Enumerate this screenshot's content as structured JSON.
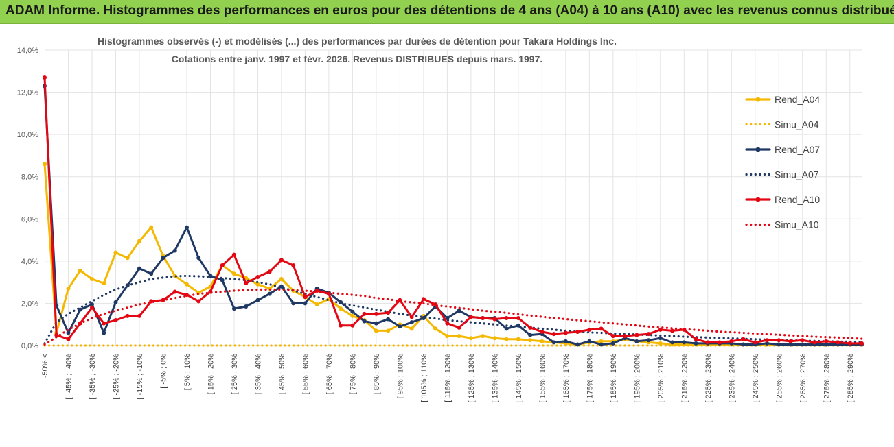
{
  "banner": {
    "title": "ADAM Informe. Histogrammes des performances en euros pour des détentions de 4 ans (A04) à 10 ans (A10) avec les revenus connus distribués",
    "color": "#92d050"
  },
  "chart_data": {
    "type": "line",
    "title_line1": "Histogrammes observés (-) et modélisés (...) des performances par durées de détention pour Takara Holdings Inc.",
    "title_line2": "Cotations entre janv. 1997 et févr. 2026. Revenus DISTRIBUES depuis mars. 1997.",
    "xlabel": "",
    "ylabel": "",
    "ylim": [
      0,
      14
    ],
    "grid": true,
    "legend_position": "right",
    "y_ticks": [
      "0,0%",
      "2,0%",
      "4,0%",
      "6,0%",
      "8,0%",
      "10,0%",
      "12,0%",
      "14,0%"
    ],
    "category_labels": [
      "-50% <",
      "[ -45% ; -40%",
      "[ -35% ; -30%",
      "[ -25% ; -20%",
      "[ -15% ; -10%",
      "[ -5% ; 0%",
      "[ 5% ; 10%",
      "[ 15% ; 20%",
      "[ 25% ; 30%",
      "[ 35% ; 40%",
      "[ 45% ; 50%",
      "[ 55% ; 60%",
      "[ 65% ; 70%",
      "[ 75% ; 80%",
      "[ 85% ; 90%",
      "[ 95% ; 100%",
      "[ 105% ; 110%",
      "[ 115% ; 120%",
      "[ 125% ; 130%",
      "[ 135% ; 140%",
      "[ 145% ; 150%",
      "[ 155% ; 160%",
      "[ 165% ; 170%",
      "[ 175% ; 180%",
      "[ 185% ; 190%",
      "[ 195% ; 200%",
      "[ 205% ; 210%",
      "[ 215% ; 220%",
      "[ 225% ; 230%",
      "[ 235% ; 240%",
      "[ 245% ; 250%",
      "[ 255% ; 260%",
      "[ 265% ; 270%",
      "[ 275% ; 280%",
      "[ 285% ; 290%"
    ],
    "n_categories": 70,
    "series": [
      {
        "name": "Rend_A04",
        "style": "solid",
        "color": "#f5b800",
        "values": [
          8.6,
          0.6,
          2.7,
          3.55,
          3.15,
          2.95,
          4.4,
          4.15,
          4.95,
          5.6,
          4.25,
          3.3,
          2.9,
          2.5,
          2.8,
          3.8,
          3.4,
          3.2,
          2.9,
          2.7,
          3.15,
          2.6,
          2.3,
          1.95,
          2.2,
          1.75,
          1.4,
          1.2,
          0.7,
          0.7,
          1.0,
          0.8,
          1.4,
          0.8,
          0.45,
          0.45,
          0.35,
          0.45,
          0.35,
          0.3,
          0.3,
          0.25,
          0.2,
          0.15,
          0.1,
          0.05,
          0.15,
          0.2,
          0.2,
          0.3,
          0.2,
          0.15,
          0.1,
          0.05,
          0.05,
          0.05,
          0.05,
          0.05,
          0.05,
          0.05,
          0.05,
          0.05,
          0.05,
          0.05,
          0.05,
          0.05,
          0.05,
          0.05,
          0.05,
          0.05
        ]
      },
      {
        "name": "Simu_A04",
        "style": "dotted",
        "color": "#f5b800",
        "values": [
          0,
          0,
          0,
          0,
          0,
          0,
          0,
          0,
          0,
          0,
          0,
          0,
          0,
          0,
          0,
          0,
          0,
          0,
          0,
          0,
          0,
          0,
          0,
          0,
          0,
          0,
          0,
          0,
          0,
          0,
          0,
          0,
          0,
          0,
          0,
          0,
          0,
          0,
          0,
          0,
          0,
          0,
          0,
          0,
          0,
          0,
          0,
          0,
          0,
          0,
          0,
          0,
          0,
          0,
          0,
          0,
          0,
          0,
          0,
          0,
          0,
          0,
          0,
          0,
          0,
          0,
          0,
          0,
          0,
          0
        ]
      },
      {
        "name": "Rend_A07",
        "style": "solid",
        "color": "#1f3864",
        "values": [
          12.3,
          1.9,
          0.6,
          1.7,
          1.95,
          0.6,
          2.05,
          2.85,
          3.65,
          3.4,
          4.15,
          4.5,
          5.6,
          4.15,
          3.3,
          3.1,
          1.75,
          1.85,
          2.15,
          2.45,
          2.8,
          2.0,
          2.0,
          2.7,
          2.5,
          2.05,
          1.6,
          1.15,
          1.05,
          1.25,
          0.9,
          1.1,
          1.3,
          1.85,
          1.3,
          1.65,
          1.35,
          1.3,
          1.3,
          0.8,
          0.95,
          0.5,
          0.55,
          0.15,
          0.2,
          0.05,
          0.2,
          0.05,
          0.1,
          0.35,
          0.2,
          0.25,
          0.35,
          0.15,
          0.15,
          0.1,
          0.1,
          0.1,
          0.1,
          0.05,
          0.05,
          0.1,
          0.05,
          0.05,
          0.05,
          0.05,
          0.05,
          0.05,
          0.05,
          0.05
        ]
      },
      {
        "name": "Simu_A07",
        "style": "dotted",
        "color": "#1f3864",
        "values": [
          0.1,
          1.1,
          1.5,
          1.8,
          2.1,
          2.4,
          2.65,
          2.85,
          3.0,
          3.15,
          3.22,
          3.28,
          3.3,
          3.28,
          3.25,
          3.2,
          3.15,
          3.1,
          3.0,
          2.9,
          2.75,
          2.6,
          2.45,
          2.3,
          2.15,
          2.0,
          1.9,
          1.8,
          1.7,
          1.6,
          1.5,
          1.42,
          1.35,
          1.28,
          1.2,
          1.15,
          1.1,
          1.05,
          1.0,
          0.95,
          0.9,
          0.85,
          0.8,
          0.75,
          0.7,
          0.65,
          0.62,
          0.6,
          0.57,
          0.55,
          0.52,
          0.5,
          0.47,
          0.45,
          0.42,
          0.4,
          0.38,
          0.36,
          0.34,
          0.32,
          0.3,
          0.28,
          0.26,
          0.25,
          0.23,
          0.22,
          0.2,
          0.19,
          0.18,
          0.16
        ]
      },
      {
        "name": "Rend_A10",
        "style": "solid",
        "color": "#e30613",
        "values": [
          12.7,
          0.5,
          0.3,
          1.05,
          1.8,
          1.05,
          1.2,
          1.4,
          1.4,
          2.1,
          2.15,
          2.55,
          2.4,
          2.1,
          2.55,
          3.8,
          4.3,
          2.95,
          3.25,
          3.5,
          4.05,
          3.8,
          2.3,
          2.6,
          2.45,
          0.95,
          0.95,
          1.5,
          1.5,
          1.55,
          2.15,
          1.35,
          2.2,
          1.95,
          1.05,
          0.85,
          1.35,
          1.3,
          1.25,
          1.3,
          1.3,
          0.85,
          0.65,
          0.55,
          0.6,
          0.65,
          0.75,
          0.8,
          0.45,
          0.45,
          0.5,
          0.55,
          0.75,
          0.7,
          0.75,
          0.3,
          0.15,
          0.15,
          0.2,
          0.3,
          0.15,
          0.25,
          0.25,
          0.2,
          0.25,
          0.15,
          0.2,
          0.15,
          0.1,
          0.1
        ]
      },
      {
        "name": "Simu_A10",
        "style": "dotted",
        "color": "#e30613",
        "values": [
          0.05,
          0.4,
          0.75,
          1.05,
          1.3,
          1.5,
          1.65,
          1.8,
          1.95,
          2.05,
          2.15,
          2.25,
          2.35,
          2.45,
          2.5,
          2.55,
          2.6,
          2.62,
          2.65,
          2.65,
          2.65,
          2.62,
          2.6,
          2.55,
          2.5,
          2.45,
          2.4,
          2.35,
          2.25,
          2.2,
          2.1,
          2.05,
          2.0,
          1.9,
          1.85,
          1.78,
          1.72,
          1.65,
          1.6,
          1.55,
          1.48,
          1.42,
          1.36,
          1.3,
          1.25,
          1.2,
          1.15,
          1.1,
          1.05,
          1.0,
          0.95,
          0.9,
          0.86,
          0.82,
          0.78,
          0.74,
          0.7,
          0.66,
          0.63,
          0.6,
          0.57,
          0.54,
          0.51,
          0.48,
          0.45,
          0.42,
          0.4,
          0.38,
          0.35,
          0.32
        ]
      }
    ]
  }
}
